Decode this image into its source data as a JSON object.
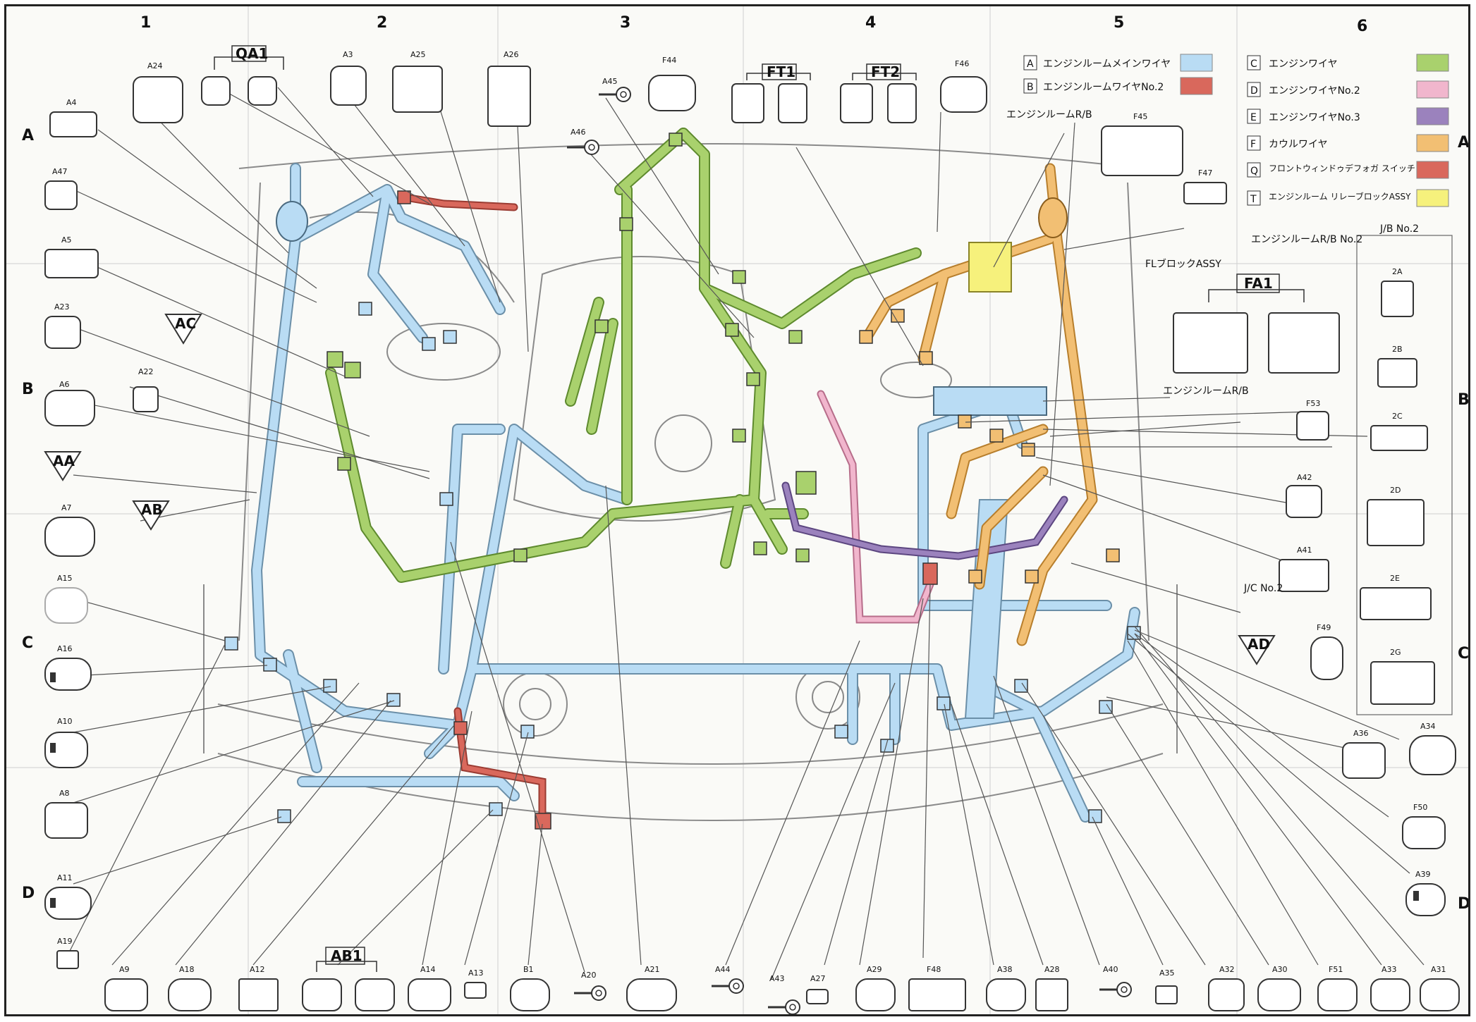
{
  "grid": {
    "columns": [
      "1",
      "2",
      "3",
      "4",
      "5",
      "6"
    ],
    "rows": [
      "A",
      "B",
      "C",
      "D"
    ]
  },
  "legend": {
    "items": [
      {
        "code": "A",
        "label": "エンジンルームメインワイヤ",
        "color": "#b9dcf4"
      },
      {
        "code": "B",
        "label": "エンジンルームワイヤNo.2",
        "color": "#d9685c"
      },
      {
        "code": "C",
        "label": "エンジンワイヤ",
        "color": "#a9d16d"
      },
      {
        "code": "D",
        "label": "エンジンワイヤNo.2",
        "color": "#f1b6cd"
      },
      {
        "code": "E",
        "label": "エンジンワイヤNo.3",
        "color": "#9b82bd"
      },
      {
        "code": "F",
        "label": "カウルワイヤ",
        "color": "#f2bf73"
      },
      {
        "code": "Q",
        "label": "フロントウィンドゥデフォガ スイッチワイヤ",
        "color": "#d9685c"
      },
      {
        "code": "T",
        "label": "エンジンルーム リレーブロックASSY",
        "color": "#f6f17c"
      }
    ]
  },
  "group_labels": {
    "QA1": "QA1",
    "FT1": "FT1",
    "FT2": "FT2",
    "FA1": "FA1",
    "AB1": "AB1",
    "AC": "AC",
    "AA": "AA",
    "AB": "AB",
    "AD": "AD"
  },
  "callouts": {
    "er_rb": "エンジンルームR/B",
    "er_rb2": "エンジンルームR/B No.2",
    "fl_block": "FLブロックASSY",
    "er_rb_b": "エンジンルームR/B",
    "jc_no2": "J/C No.2",
    "jb_no2": "J/B No.2"
  },
  "connectors": {
    "A4": "A4",
    "A24": "A24",
    "A3": "A3",
    "A25": "A25",
    "A26": "A26",
    "A45": "A45",
    "F44": "F44",
    "A46": "A46",
    "F46": "F46",
    "F45": "F45",
    "F47": "F47",
    "A47": "A47",
    "A5": "A5",
    "A23": "A23",
    "A22": "A22",
    "A6": "A6",
    "A7": "A7",
    "A15": "A15",
    "A16": "A16",
    "A10": "A10",
    "A8": "A8",
    "A11": "A11",
    "A19": "A19",
    "A9": "A9",
    "A18": "A18",
    "A12": "A12",
    "A14": "A14",
    "A13": "A13",
    "B1": "B1",
    "A20": "A20",
    "A21": "A21",
    "A44": "A44",
    "A43": "A43",
    "A27": "A27",
    "A29": "A29",
    "F48": "F48",
    "A38": "A38",
    "A28": "A28",
    "A40": "A40",
    "A35": "A35",
    "A32": "A32",
    "A30": "A30",
    "F51": "F51",
    "A33": "A33",
    "A31": "A31",
    "F53": "F53",
    "A42": "A42",
    "A41": "A41",
    "F49": "F49",
    "A34": "A34",
    "A36": "A36",
    "F50": "F50",
    "A39": "A39",
    "2A": "2A",
    "2B": "2B",
    "2C": "2C",
    "2D": "2D",
    "2E": "2E",
    "2G": "2G"
  }
}
